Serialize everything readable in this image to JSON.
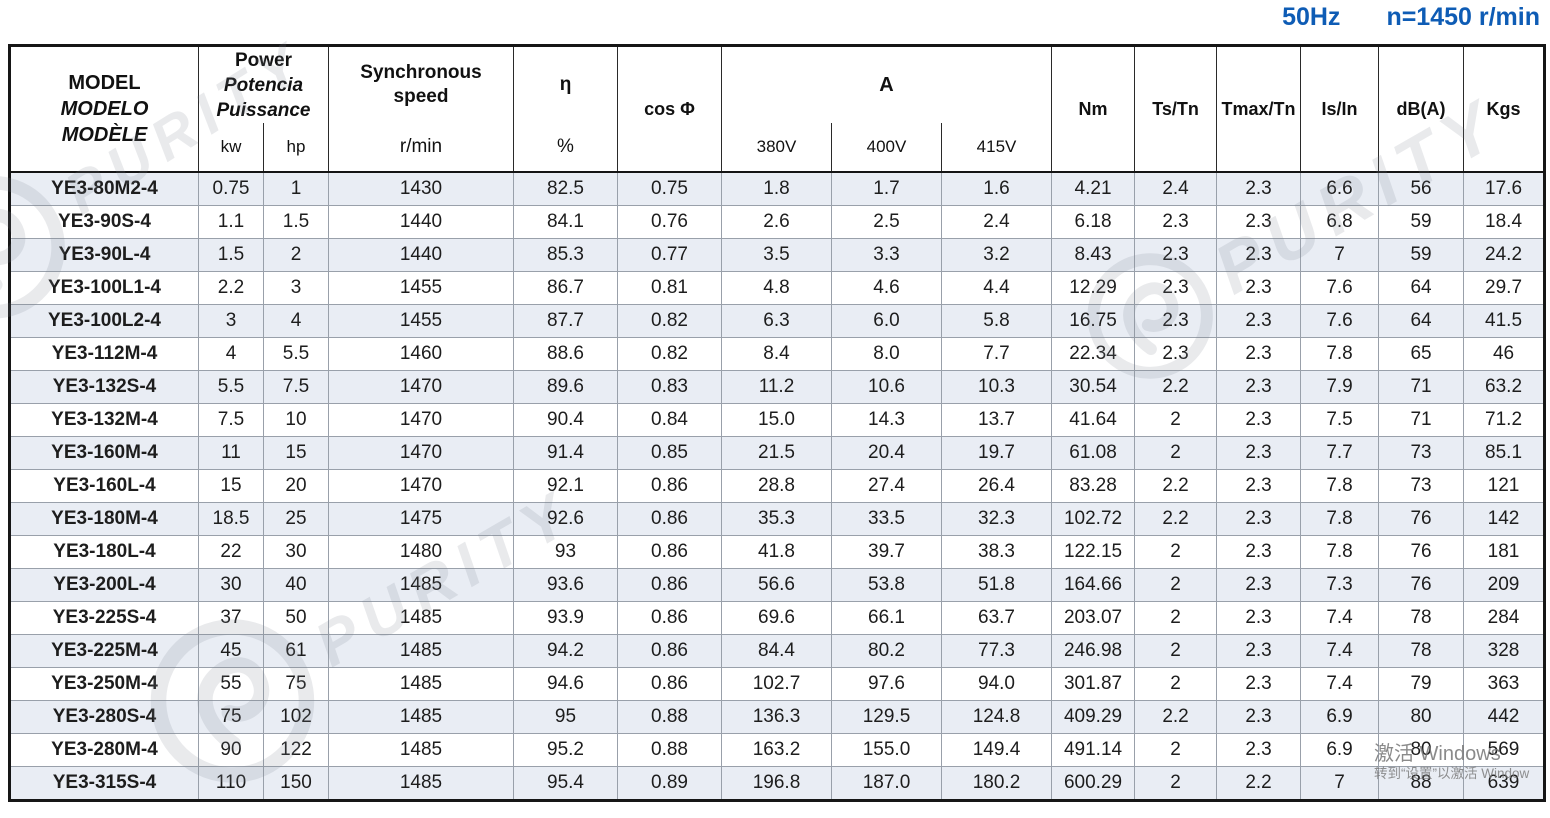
{
  "title": {
    "frequency": "50Hz",
    "speed": "n=1450 r/min"
  },
  "colors": {
    "title_blue": "#0e5cb5",
    "row_stripe": "#e9edf4",
    "grid_line": "#99a0aa",
    "outer_border": "#161616"
  },
  "watermark": {
    "text": "PURITY"
  },
  "activation": {
    "line1": "激活 Windows",
    "line2": "转到“设置”以激活 Window"
  },
  "table": {
    "header": {
      "model": [
        "MODEL",
        "MODELO",
        "MODÈLE"
      ],
      "power": [
        "Power",
        "Potencia",
        "Puissance"
      ],
      "power_units": [
        "kw",
        "hp"
      ],
      "sync": [
        "Synchronous",
        "speed"
      ],
      "sync_unit": "r/min",
      "eta": "η",
      "eta_unit": "%",
      "cos_phi": "cos Φ",
      "current": "A",
      "voltages": [
        "380V",
        "400V",
        "415V"
      ],
      "nm": "Nm",
      "ts_tn": "Ts/Tn",
      "tmax_tn": "Tmax/Tn",
      "is_in": "Is/In",
      "db_a": "dB(A)",
      "kgs": "Kgs"
    },
    "columns": [
      "model",
      "kw",
      "hp",
      "rpm",
      "eta",
      "cos_phi",
      "a_380v",
      "a_400v",
      "a_415v",
      "nm",
      "ts_tn",
      "tmax_tn",
      "is_in",
      "db_a",
      "kgs"
    ],
    "rows": [
      {
        "model": "YE3-80M2-4",
        "kw": "0.75",
        "hp": "1",
        "rpm": "1430",
        "eta": "82.5",
        "cos_phi": "0.75",
        "a_380v": "1.8",
        "a_400v": "1.7",
        "a_415v": "1.6",
        "nm": "4.21",
        "ts_tn": "2.4",
        "tmax_tn": "2.3",
        "is_in": "6.6",
        "db_a": "56",
        "kgs": "17.6"
      },
      {
        "model": "YE3-90S-4",
        "kw": "1.1",
        "hp": "1.5",
        "rpm": "1440",
        "eta": "84.1",
        "cos_phi": "0.76",
        "a_380v": "2.6",
        "a_400v": "2.5",
        "a_415v": "2.4",
        "nm": "6.18",
        "ts_tn": "2.3",
        "tmax_tn": "2.3",
        "is_in": "6.8",
        "db_a": "59",
        "kgs": "18.4"
      },
      {
        "model": "YE3-90L-4",
        "kw": "1.5",
        "hp": "2",
        "rpm": "1440",
        "eta": "85.3",
        "cos_phi": "0.77",
        "a_380v": "3.5",
        "a_400v": "3.3",
        "a_415v": "3.2",
        "nm": "8.43",
        "ts_tn": "2.3",
        "tmax_tn": "2.3",
        "is_in": "7",
        "db_a": "59",
        "kgs": "24.2"
      },
      {
        "model": "YE3-100L1-4",
        "kw": "2.2",
        "hp": "3",
        "rpm": "1455",
        "eta": "86.7",
        "cos_phi": "0.81",
        "a_380v": "4.8",
        "a_400v": "4.6",
        "a_415v": "4.4",
        "nm": "12.29",
        "ts_tn": "2.3",
        "tmax_tn": "2.3",
        "is_in": "7.6",
        "db_a": "64",
        "kgs": "29.7"
      },
      {
        "model": "YE3-100L2-4",
        "kw": "3",
        "hp": "4",
        "rpm": "1455",
        "eta": "87.7",
        "cos_phi": "0.82",
        "a_380v": "6.3",
        "a_400v": "6.0",
        "a_415v": "5.8",
        "nm": "16.75",
        "ts_tn": "2.3",
        "tmax_tn": "2.3",
        "is_in": "7.6",
        "db_a": "64",
        "kgs": "41.5"
      },
      {
        "model": "YE3-112M-4",
        "kw": "4",
        "hp": "5.5",
        "rpm": "1460",
        "eta": "88.6",
        "cos_phi": "0.82",
        "a_380v": "8.4",
        "a_400v": "8.0",
        "a_415v": "7.7",
        "nm": "22.34",
        "ts_tn": "2.3",
        "tmax_tn": "2.3",
        "is_in": "7.8",
        "db_a": "65",
        "kgs": "46"
      },
      {
        "model": "YE3-132S-4",
        "kw": "5.5",
        "hp": "7.5",
        "rpm": "1470",
        "eta": "89.6",
        "cos_phi": "0.83",
        "a_380v": "11.2",
        "a_400v": "10.6",
        "a_415v": "10.3",
        "nm": "30.54",
        "ts_tn": "2.2",
        "tmax_tn": "2.3",
        "is_in": "7.9",
        "db_a": "71",
        "kgs": "63.2"
      },
      {
        "model": "YE3-132M-4",
        "kw": "7.5",
        "hp": "10",
        "rpm": "1470",
        "eta": "90.4",
        "cos_phi": "0.84",
        "a_380v": "15.0",
        "a_400v": "14.3",
        "a_415v": "13.7",
        "nm": "41.64",
        "ts_tn": "2",
        "tmax_tn": "2.3",
        "is_in": "7.5",
        "db_a": "71",
        "kgs": "71.2"
      },
      {
        "model": "YE3-160M-4",
        "kw": "11",
        "hp": "15",
        "rpm": "1470",
        "eta": "91.4",
        "cos_phi": "0.85",
        "a_380v": "21.5",
        "a_400v": "20.4",
        "a_415v": "19.7",
        "nm": "61.08",
        "ts_tn": "2",
        "tmax_tn": "2.3",
        "is_in": "7.7",
        "db_a": "73",
        "kgs": "85.1"
      },
      {
        "model": "YE3-160L-4",
        "kw": "15",
        "hp": "20",
        "rpm": "1470",
        "eta": "92.1",
        "cos_phi": "0.86",
        "a_380v": "28.8",
        "a_400v": "27.4",
        "a_415v": "26.4",
        "nm": "83.28",
        "ts_tn": "2.2",
        "tmax_tn": "2.3",
        "is_in": "7.8",
        "db_a": "73",
        "kgs": "121"
      },
      {
        "model": "YE3-180M-4",
        "kw": "18.5",
        "hp": "25",
        "rpm": "1475",
        "eta": "92.6",
        "cos_phi": "0.86",
        "a_380v": "35.3",
        "a_400v": "33.5",
        "a_415v": "32.3",
        "nm": "102.72",
        "ts_tn": "2.2",
        "tmax_tn": "2.3",
        "is_in": "7.8",
        "db_a": "76",
        "kgs": "142"
      },
      {
        "model": "YE3-180L-4",
        "kw": "22",
        "hp": "30",
        "rpm": "1480",
        "eta": "93",
        "cos_phi": "0.86",
        "a_380v": "41.8",
        "a_400v": "39.7",
        "a_415v": "38.3",
        "nm": "122.15",
        "ts_tn": "2",
        "tmax_tn": "2.3",
        "is_in": "7.8",
        "db_a": "76",
        "kgs": "181"
      },
      {
        "model": "YE3-200L-4",
        "kw": "30",
        "hp": "40",
        "rpm": "1485",
        "eta": "93.6",
        "cos_phi": "0.86",
        "a_380v": "56.6",
        "a_400v": "53.8",
        "a_415v": "51.8",
        "nm": "164.66",
        "ts_tn": "2",
        "tmax_tn": "2.3",
        "is_in": "7.3",
        "db_a": "76",
        "kgs": "209"
      },
      {
        "model": "YE3-225S-4",
        "kw": "37",
        "hp": "50",
        "rpm": "1485",
        "eta": "93.9",
        "cos_phi": "0.86",
        "a_380v": "69.6",
        "a_400v": "66.1",
        "a_415v": "63.7",
        "nm": "203.07",
        "ts_tn": "2",
        "tmax_tn": "2.3",
        "is_in": "7.4",
        "db_a": "78",
        "kgs": "284"
      },
      {
        "model": "YE3-225M-4",
        "kw": "45",
        "hp": "61",
        "rpm": "1485",
        "eta": "94.2",
        "cos_phi": "0.86",
        "a_380v": "84.4",
        "a_400v": "80.2",
        "a_415v": "77.3",
        "nm": "246.98",
        "ts_tn": "2",
        "tmax_tn": "2.3",
        "is_in": "7.4",
        "db_a": "78",
        "kgs": "328"
      },
      {
        "model": "YE3-250M-4",
        "kw": "55",
        "hp": "75",
        "rpm": "1485",
        "eta": "94.6",
        "cos_phi": "0.86",
        "a_380v": "102.7",
        "a_400v": "97.6",
        "a_415v": "94.0",
        "nm": "301.87",
        "ts_tn": "2",
        "tmax_tn": "2.3",
        "is_in": "7.4",
        "db_a": "79",
        "kgs": "363"
      },
      {
        "model": "YE3-280S-4",
        "kw": "75",
        "hp": "102",
        "rpm": "1485",
        "eta": "95",
        "cos_phi": "0.88",
        "a_380v": "136.3",
        "a_400v": "129.5",
        "a_415v": "124.8",
        "nm": "409.29",
        "ts_tn": "2.2",
        "tmax_tn": "2.3",
        "is_in": "6.9",
        "db_a": "80",
        "kgs": "442"
      },
      {
        "model": "YE3-280M-4",
        "kw": "90",
        "hp": "122",
        "rpm": "1485",
        "eta": "95.2",
        "cos_phi": "0.88",
        "a_380v": "163.2",
        "a_400v": "155.0",
        "a_415v": "149.4",
        "nm": "491.14",
        "ts_tn": "2",
        "tmax_tn": "2.3",
        "is_in": "6.9",
        "db_a": "80",
        "kgs": "569"
      },
      {
        "model": "YE3-315S-4",
        "kw": "110",
        "hp": "150",
        "rpm": "1485",
        "eta": "95.4",
        "cos_phi": "0.89",
        "a_380v": "196.8",
        "a_400v": "187.0",
        "a_415v": "180.2",
        "nm": "600.29",
        "ts_tn": "2",
        "tmax_tn": "2.2",
        "is_in": "7",
        "db_a": "88",
        "kgs": "639"
      }
    ]
  }
}
